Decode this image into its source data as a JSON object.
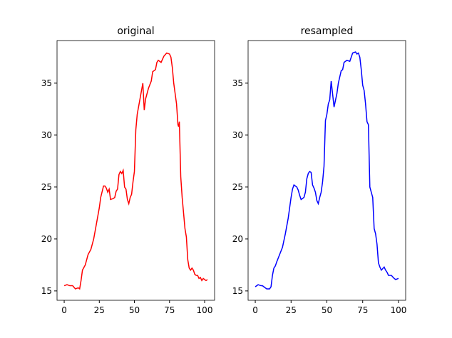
{
  "chart_data": [
    {
      "type": "line",
      "title": "original",
      "x": [
        0,
        2,
        4,
        6,
        8,
        10,
        11,
        12,
        13,
        15,
        17,
        19,
        21,
        23,
        25,
        26,
        28,
        29,
        30,
        31,
        32,
        33,
        35,
        36,
        37,
        38,
        39,
        40,
        41,
        42,
        43,
        44,
        45,
        46,
        47,
        48,
        49,
        50,
        51,
        52,
        54,
        56,
        57,
        58,
        60,
        62,
        63,
        65,
        66,
        67,
        69,
        71,
        73,
        75,
        76,
        77,
        78,
        79,
        80,
        81,
        81.5,
        82,
        83,
        84,
        85,
        86,
        87,
        88,
        89,
        90,
        91,
        92,
        93,
        94,
        95,
        96,
        97,
        98,
        99,
        100,
        101,
        102
      ],
      "series": [
        {
          "name": "original",
          "color": "#ff0000",
          "values": [
            15.5,
            15.6,
            15.5,
            15.5,
            15.2,
            15.3,
            15.2,
            16.0,
            17.0,
            17.5,
            18.5,
            19.0,
            20.0,
            21.5,
            23.0,
            24.0,
            25.1,
            25.1,
            24.9,
            24.5,
            24.8,
            23.8,
            23.9,
            24.0,
            24.6,
            24.8,
            26.2,
            26.5,
            26.3,
            26.6,
            25.0,
            24.8,
            23.8,
            23.4,
            24.0,
            24.3,
            25.5,
            26.5,
            30.5,
            32.0,
            33.5,
            35.0,
            32.4,
            33.5,
            34.5,
            35.2,
            36.1,
            36.3,
            37.0,
            37.2,
            37.0,
            37.6,
            37.9,
            37.8,
            37.5,
            36.5,
            35.0,
            34.0,
            33.0,
            31.0,
            30.8,
            31.3,
            26.0,
            24.0,
            22.5,
            21.0,
            20.2,
            18.0,
            17.2,
            17.0,
            17.2,
            17.0,
            16.6,
            16.5,
            16.5,
            16.2,
            16.3,
            16.0,
            16.2,
            16.1,
            16.0,
            16.1
          ]
        }
      ],
      "xlim": [
        -5.1,
        107.1
      ],
      "ylim": [
        14.1,
        39.1
      ],
      "xticks": [
        0,
        25,
        50,
        75,
        100
      ],
      "yticks": [
        15,
        20,
        25,
        30,
        35
      ]
    },
    {
      "type": "line",
      "title": "resampled",
      "x": [
        0,
        2,
        4,
        5,
        6,
        8,
        10,
        11,
        12,
        13,
        14,
        15,
        17,
        19,
        21,
        23,
        24,
        25,
        26,
        27,
        28,
        29,
        30,
        31,
        32,
        34,
        35,
        36,
        37,
        38,
        39,
        40,
        41,
        42,
        43,
        44,
        45,
        46,
        47,
        48,
        49,
        50,
        51,
        52,
        53,
        55,
        57,
        58,
        60,
        61,
        62,
        64,
        66,
        68,
        70,
        71,
        72,
        73,
        74,
        75,
        76,
        77,
        78,
        79,
        80,
        82,
        83,
        84,
        85,
        86,
        87,
        88,
        90,
        91,
        92,
        93,
        95,
        97,
        98,
        100
      ],
      "series": [
        {
          "name": "resampled",
          "color": "#0000ff",
          "values": [
            15.4,
            15.6,
            15.5,
            15.5,
            15.4,
            15.2,
            15.2,
            15.4,
            16.5,
            17.2,
            17.4,
            17.8,
            18.5,
            19.2,
            20.5,
            22.0,
            23.0,
            24.0,
            24.8,
            25.2,
            25.1,
            25.0,
            24.7,
            24.2,
            23.8,
            24.0,
            24.5,
            25.8,
            26.3,
            26.5,
            26.4,
            25.2,
            24.9,
            24.5,
            23.7,
            23.4,
            24.0,
            24.5,
            25.5,
            27.0,
            31.4,
            32.0,
            33.0,
            33.4,
            35.2,
            32.7,
            34.0,
            35.0,
            36.2,
            36.3,
            37.0,
            37.2,
            37.1,
            37.9,
            38.0,
            37.8,
            37.9,
            37.5,
            36.3,
            34.8,
            34.3,
            33.0,
            31.3,
            31.0,
            25.0,
            24.0,
            21.0,
            20.5,
            19.5,
            17.7,
            17.3,
            17.0,
            17.3,
            17.0,
            16.8,
            16.5,
            16.5,
            16.2,
            16.1,
            16.2
          ]
        }
      ],
      "xlim": [
        -5,
        105
      ],
      "ylim": [
        14.1,
        39.1
      ],
      "xticks": [
        0,
        25,
        50,
        75,
        100
      ],
      "yticks": [
        15,
        20,
        25,
        30,
        35
      ]
    }
  ]
}
